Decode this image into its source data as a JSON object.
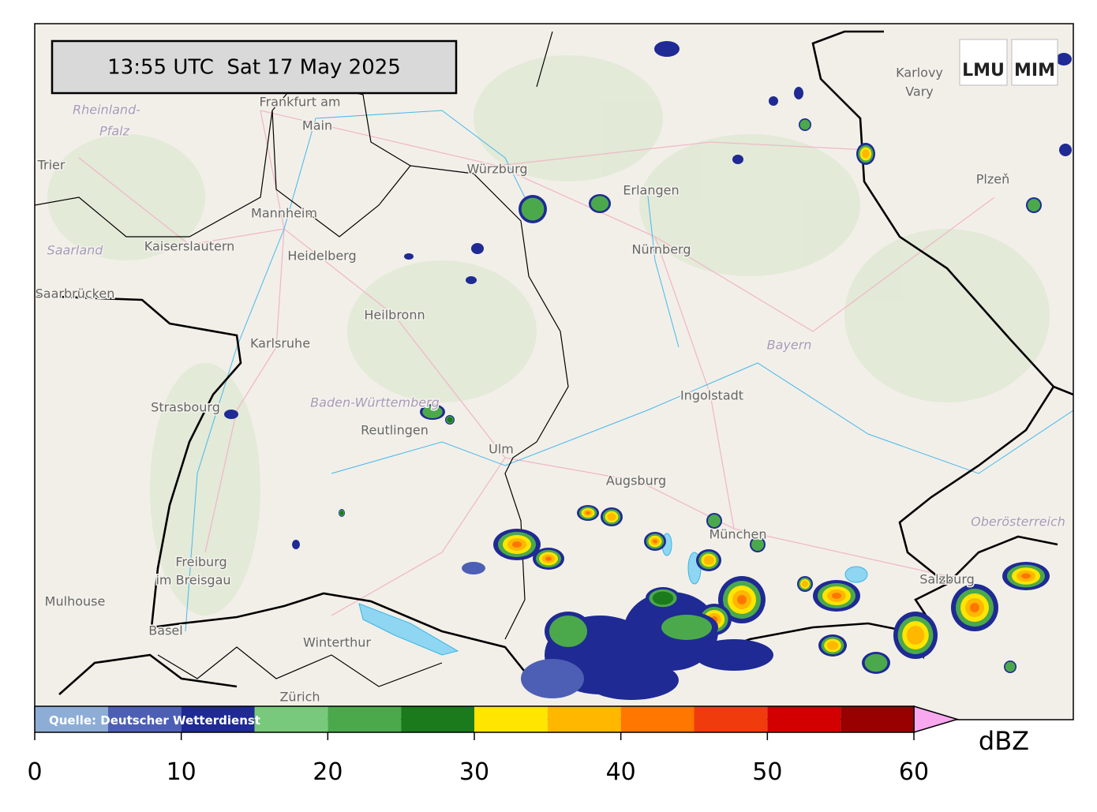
{
  "timestamp": "13:55 UTC  Sat 17 May 2025",
  "logo": {
    "left": "LMU",
    "right": "MIM"
  },
  "places": [
    "Frankfurt am",
    "Main",
    "Rheinland-",
    "Pfalz",
    "Trier",
    "Würzburg",
    "Erlangen",
    "Nürnberg",
    "Mannheim",
    "Kaiserslautern",
    "Heidelberg",
    "Saarland",
    "Saarbrücken",
    "Heilbronn",
    "Karlsruhe",
    "Bayern",
    "Ingolstadt",
    "Strasbourg",
    "Baden-Württemberg",
    "Reutlingen",
    "Ulm",
    "Augsburg",
    "München",
    "Freiburg",
    "im Breisgau",
    "Mulhouse",
    "Basel",
    "Winterthur",
    "Zürich",
    "Salzburg",
    "Oberösterreich",
    "Karlovy",
    "Vary",
    "Plzeň"
  ],
  "colorbar": {
    "bounds": [
      0,
      5,
      10,
      15,
      20,
      25,
      30,
      35,
      40,
      45,
      50,
      55,
      60
    ],
    "colors": [
      "#8eadd6",
      "#4d5fb5",
      "#1f2a94",
      "#78c97b",
      "#4ba94b",
      "#1b7a1b",
      "#ffe500",
      "#ffb700",
      "#ff7600",
      "#f03c0c",
      "#d20000",
      "#990000"
    ],
    "extend_color": "#f7a8ee",
    "ticks": [
      0,
      10,
      20,
      30,
      40,
      50,
      60
    ],
    "label": "dBZ",
    "source": "Quelle: Deutscher Wetterdienst"
  }
}
